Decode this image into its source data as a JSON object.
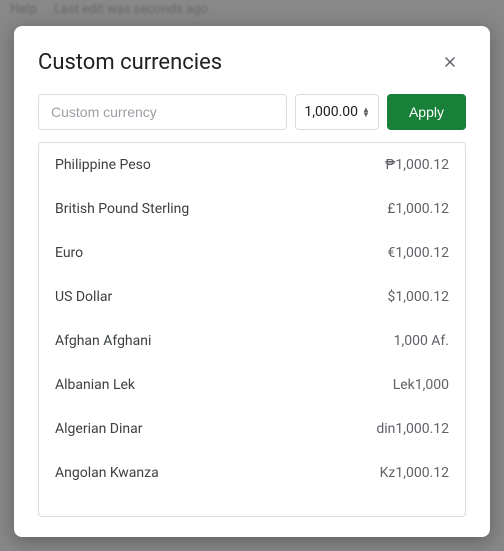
{
  "background": {
    "menu_item": "Help",
    "status_text": "Last edit was seconds ago"
  },
  "modal": {
    "title": "Custom currencies",
    "close_icon": "×",
    "search_placeholder": "Custom currency",
    "format_value": "1,000.00",
    "apply_label": "Apply"
  },
  "currencies": [
    {
      "name": "Philippine Peso",
      "sample": "₱1,000.12"
    },
    {
      "name": "British Pound Sterling",
      "sample": "£1,000.12"
    },
    {
      "name": "Euro",
      "sample": "€1,000.12"
    },
    {
      "name": "US Dollar",
      "sample": "$1,000.12"
    },
    {
      "name": "Afghan Afghani",
      "sample": "1,000 Af."
    },
    {
      "name": "Albanian Lek",
      "sample": "Lek1,000"
    },
    {
      "name": "Algerian Dinar",
      "sample": "din1,000.12"
    },
    {
      "name": "Angolan Kwanza",
      "sample": "Kz1,000.12"
    }
  ],
  "colors": {
    "modal_bg": "#ffffff",
    "title_color": "#202124",
    "border_color": "#dadce0",
    "text_primary": "#3c4043",
    "text_secondary": "#5f6368",
    "placeholder_color": "#9aa0a6",
    "apply_btn_bg": "#188038",
    "apply_btn_text": "#ffffff",
    "backdrop": "#888888"
  }
}
